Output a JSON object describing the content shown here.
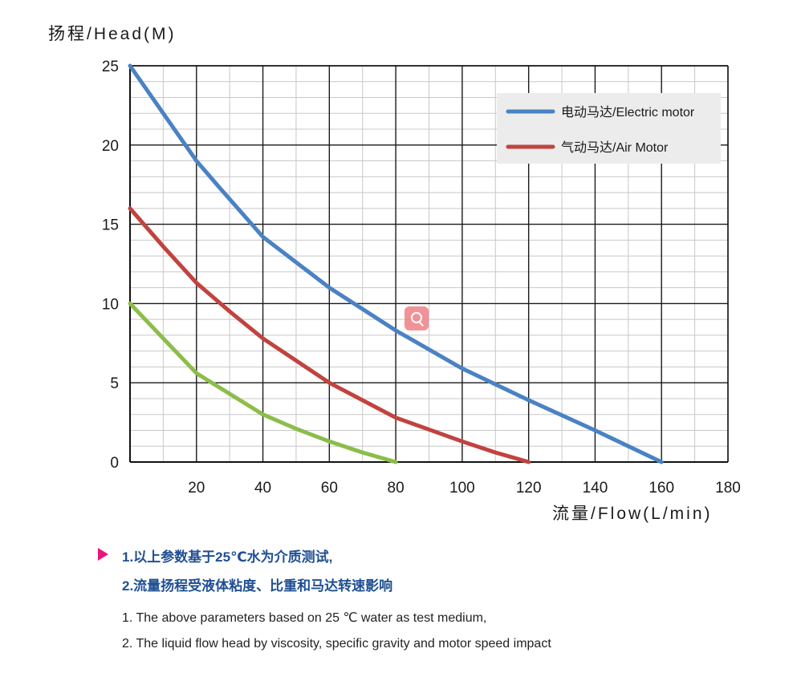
{
  "chart_data": {
    "type": "line",
    "ylabel": "扬程/Head(M)",
    "xlabel": "流量/Flow(L/min)",
    "xlim": [
      0,
      180
    ],
    "ylim": [
      0,
      25
    ],
    "x_ticks": [
      "20",
      "40",
      "60",
      "80",
      "100",
      "120",
      "140",
      "160",
      "180"
    ],
    "y_ticks": [
      "0",
      "5",
      "10",
      "15",
      "20",
      "25"
    ],
    "grid": true,
    "legend_position": "top-right",
    "series": [
      {
        "name": "电动马达/Electric motor",
        "color": "#4a82c4",
        "x": [
          0,
          10,
          20,
          27,
          40,
          60,
          80,
          100,
          120,
          140,
          160
        ],
        "y": [
          25,
          22,
          19,
          17.3,
          14.2,
          11,
          8.3,
          5.9,
          3.9,
          2,
          0
        ]
      },
      {
        "name": "气动马达/Air Motor",
        "color": "#c1433f",
        "x": [
          0,
          10,
          20,
          30,
          40,
          60,
          80,
          100,
          110,
          120
        ],
        "y": [
          16,
          13.6,
          11.3,
          9.5,
          7.8,
          5,
          2.8,
          1.3,
          0.6,
          0
        ]
      },
      {
        "name": "",
        "color": "#8cbd4a",
        "x": [
          0,
          10,
          20,
          30,
          40,
          50,
          60,
          70,
          80
        ],
        "y": [
          10,
          7.8,
          5.6,
          4.3,
          3,
          2.1,
          1.3,
          0.6,
          0
        ]
      }
    ]
  },
  "notes": {
    "cn_line1": "1.以上参数基于25℃水为介质测试,",
    "cn_line2": "2.流量扬程受液体粘度、比重和马达转速影响",
    "en_line1": "1. The above parameters based on 25 ℃ water as test medium,",
    "en_line2": "2. The liquid flow head by viscosity, specific gravity and motor speed impact"
  },
  "colors": {
    "grid_major": "#1a1a1a",
    "grid_minor": "#c8c8c8",
    "legend_bg": "#ececec",
    "note_cn": "#1f4f93",
    "bullet": "#e8157b"
  },
  "icons": {
    "zoom": "zoom-search-icon"
  }
}
